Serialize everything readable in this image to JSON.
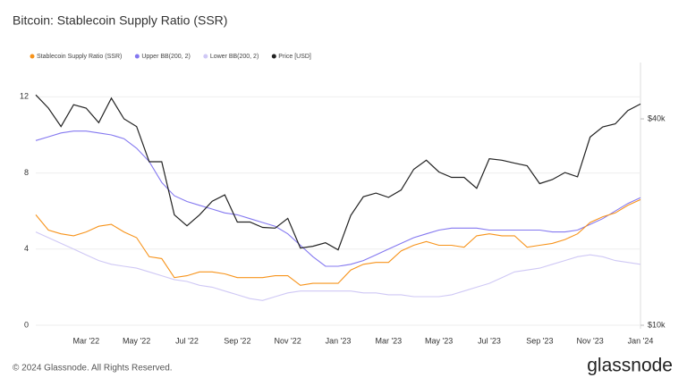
{
  "chart_data": {
    "type": "line",
    "title": "Bitcoin: Stablecoin Supply Ratio (SSR)",
    "categories": [
      null,
      null,
      null,
      null,
      "Mar '22",
      null,
      null,
      null,
      "May '22",
      null,
      null,
      null,
      "Jul '22",
      null,
      null,
      null,
      "Sep '22",
      null,
      null,
      null,
      "Nov '22",
      null,
      null,
      null,
      "Jan '23",
      null,
      null,
      null,
      "Mar '23",
      null,
      null,
      null,
      "May '23",
      null,
      null,
      null,
      "Jul '23",
      null,
      null,
      null,
      "Sep '23",
      null,
      null,
      null,
      "Nov '23",
      null,
      null,
      null,
      "Jan '24"
    ],
    "series": [
      {
        "name": "Stablecoin Supply Ratio (SSR)",
        "color": "#f7931a",
        "values": [
          5.8,
          5.0,
          4.8,
          4.7,
          4.9,
          5.2,
          5.3,
          4.9,
          4.6,
          3.6,
          3.5,
          2.5,
          2.6,
          2.8,
          2.8,
          2.7,
          2.5,
          2.5,
          2.5,
          2.6,
          2.6,
          2.1,
          2.2,
          2.2,
          2.2,
          2.9,
          3.2,
          3.3,
          3.3,
          3.9,
          4.2,
          4.4,
          4.2,
          4.2,
          4.1,
          4.7,
          4.8,
          4.7,
          4.7,
          4.1,
          4.2,
          4.3,
          4.5,
          4.8,
          5.4,
          5.7,
          5.9,
          6.3,
          6.6
        ]
      },
      {
        "name": "Upper BB(200, 2)",
        "color": "#8478f0",
        "values": [
          9.7,
          9.9,
          10.1,
          10.2,
          10.2,
          10.1,
          10.0,
          9.8,
          9.3,
          8.6,
          7.5,
          6.8,
          6.5,
          6.3,
          6.1,
          5.9,
          5.8,
          5.6,
          5.4,
          5.2,
          4.8,
          4.2,
          3.6,
          3.1,
          3.1,
          3.2,
          3.4,
          3.7,
          4.0,
          4.3,
          4.6,
          4.8,
          5.0,
          5.1,
          5.1,
          5.1,
          5.0,
          5.0,
          5.0,
          5.0,
          5.0,
          4.9,
          4.9,
          5.0,
          5.3,
          5.6,
          6.0,
          6.4,
          6.7
        ]
      },
      {
        "name": "Lower BB(200, 2)",
        "color": "#cfc8f5",
        "values": [
          4.9,
          4.6,
          4.3,
          4.0,
          3.7,
          3.4,
          3.2,
          3.1,
          3.0,
          2.8,
          2.6,
          2.4,
          2.3,
          2.1,
          2.0,
          1.8,
          1.6,
          1.4,
          1.3,
          1.5,
          1.7,
          1.8,
          1.8,
          1.8,
          1.8,
          1.8,
          1.7,
          1.7,
          1.6,
          1.6,
          1.5,
          1.5,
          1.5,
          1.6,
          1.8,
          2.0,
          2.2,
          2.5,
          2.8,
          2.9,
          3.0,
          3.2,
          3.4,
          3.6,
          3.7,
          3.6,
          3.4,
          3.3,
          3.2
        ]
      },
      {
        "name": "Price [USD]",
        "color": "#222222",
        "axis": "y2",
        "values": [
          47000,
          43000,
          38000,
          44000,
          43000,
          39000,
          46000,
          40000,
          38000,
          30000,
          30000,
          21000,
          19500,
          21000,
          23000,
          24000,
          20000,
          20000,
          19300,
          19200,
          20500,
          16800,
          17000,
          17400,
          16600,
          20900,
          23700,
          24300,
          23600,
          24800,
          28500,
          30300,
          28000,
          27000,
          27000,
          25100,
          30600,
          30300,
          29700,
          29200,
          25900,
          26600,
          27900,
          27100,
          35400,
          37900,
          38700,
          42300,
          44200
        ]
      }
    ],
    "ylim": [
      0,
      13.8
    ],
    "yticks": [
      0,
      4,
      8,
      12
    ],
    "y2lim": [
      10000,
      58400
    ],
    "y2scale": "log",
    "y2ticks": [
      {
        "value": 10000,
        "label": "$10k"
      },
      {
        "value": 40000,
        "label": "$40k"
      }
    ],
    "grid": true,
    "legend": "top-left"
  },
  "footer": "© 2024 Glassnode. All Rights Reserved.",
  "brand": "glassnode"
}
